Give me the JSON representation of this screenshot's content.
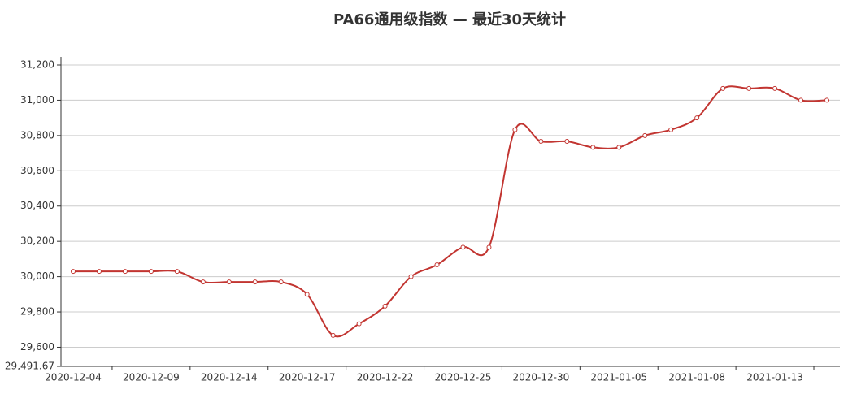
{
  "chart_data": {
    "type": "line",
    "title": "PA66通用级指数   —   最近30天统计",
    "categories": [
      "2020-12-04",
      null,
      null,
      "2020-12-09",
      null,
      null,
      "2020-12-14",
      null,
      null,
      "2020-12-17",
      null,
      null,
      "2020-12-22",
      null,
      null,
      "2020-12-25",
      null,
      null,
      "2020-12-30",
      null,
      null,
      "2021-01-05",
      null,
      null,
      "2021-01-08",
      null,
      null,
      "2021-01-13",
      null,
      null
    ],
    "series": [
      {
        "name": "PA66通用级指数",
        "color": "#c23531",
        "values": [
          30030,
          30030,
          30030,
          30030,
          30030,
          29970,
          29970,
          29970,
          29970,
          29900,
          29667,
          29733,
          29833,
          30000,
          30067,
          30167,
          30167,
          30833,
          30767,
          30767,
          30733,
          30733,
          30800,
          30833,
          30900,
          31067,
          31067,
          31067,
          31000,
          31000
        ]
      }
    ],
    "ylim": [
      29491.67,
      31200
    ],
    "yticks": [
      {
        "value": 29491.67,
        "label": "29,491.67"
      },
      {
        "value": 29600,
        "label": "29,600"
      },
      {
        "value": 29800,
        "label": "29,800"
      },
      {
        "value": 30000,
        "label": "30,000"
      },
      {
        "value": 30200,
        "label": "30,200"
      },
      {
        "value": 30400,
        "label": "30,400"
      },
      {
        "value": 30600,
        "label": "30,600"
      },
      {
        "value": 30800,
        "label": "30,800"
      },
      {
        "value": 31000,
        "label": "31,000"
      },
      {
        "value": 31200,
        "label": "31,200"
      }
    ],
    "grid": true,
    "smooth": true
  }
}
